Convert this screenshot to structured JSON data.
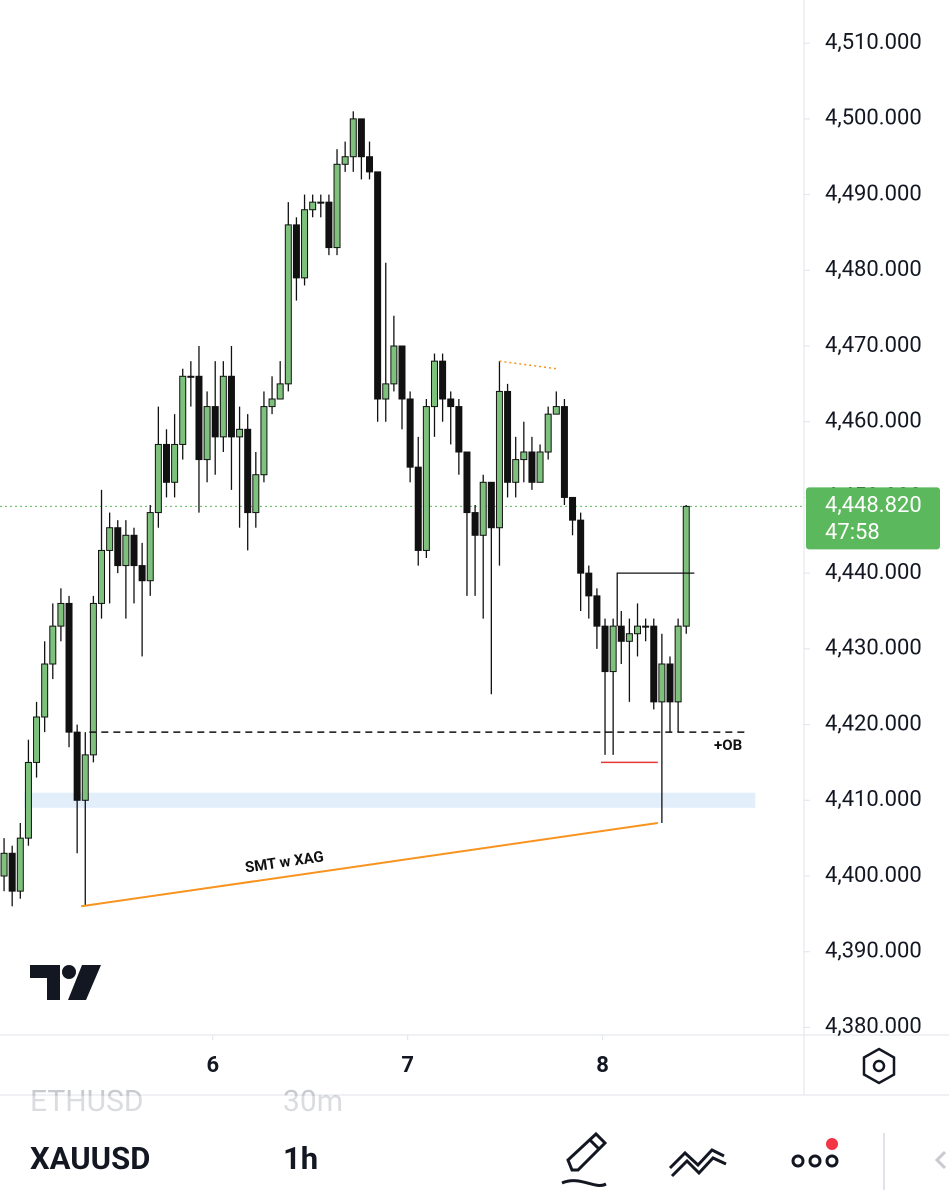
{
  "chart_data": {
    "type": "candlestick",
    "symbol": "XAUUSD",
    "open": [
      4400,
      4403,
      4398,
      4405,
      4415,
      4421,
      4428,
      4433,
      4436,
      4419,
      4410,
      4416,
      4436,
      4443,
      4446,
      4441,
      4445,
      4441,
      4439,
      4448,
      4457,
      4452,
      4457,
      4466,
      4466,
      4455,
      4462,
      4458,
      4466,
      4458,
      4459,
      4448,
      4453,
      4462,
      4463,
      4465,
      4486,
      4479,
      4488,
      4489,
      4489,
      4483,
      4494,
      4495,
      4500,
      4495,
      4493,
      4463,
      4465,
      4470,
      4463,
      4454,
      4443,
      4462,
      4468,
      4463,
      4462,
      4456,
      4448,
      4445,
      4452,
      4446,
      4464,
      4452,
      4455,
      4456,
      4452,
      4456,
      4461,
      4462,
      4450,
      4447,
      4440,
      4437,
      4433,
      4427,
      4433,
      4431,
      4432,
      4433,
      4433,
      4423,
      4428,
      4423,
      4433
    ],
    "high": [
      4405,
      4404,
      4407,
      4418,
      4423,
      4431,
      4436,
      4438,
      4437,
      4420,
      4419,
      4437,
      4451,
      4448,
      4447,
      4447,
      4446,
      4444,
      4449,
      4462,
      4459,
      4461,
      4467,
      4468,
      4470,
      4464,
      4468,
      4468,
      4470,
      4462,
      4461,
      4456,
      4464,
      4466,
      4468,
      4489,
      4487,
      4490,
      4490,
      4490,
      4490,
      4496,
      4497,
      4501,
      4500,
      4497,
      4493,
      4481,
      4474,
      4470,
      4464,
      4458,
      4463,
      4469,
      4469,
      4464,
      4463,
      4456,
      4449,
      4453,
      4452,
      4468,
      4465,
      4458,
      4460,
      4458,
      4457,
      4462,
      4464,
      4463,
      4450,
      4448,
      4441,
      4438,
      4434,
      4434,
      4435,
      4434,
      4436,
      4434,
      4434,
      4432,
      4429,
      4434,
      4449
    ],
    "low": [
      4398,
      4396,
      4397,
      4404,
      4413,
      4419,
      4426,
      4431,
      4417,
      4403,
      4396,
      4415,
      4434,
      4436,
      4440,
      4434,
      4436,
      4429,
      4437,
      4446,
      4450,
      4450,
      4455,
      4462,
      4448,
      4452,
      4453,
      4456,
      4451,
      4446,
      4443,
      4446,
      4452,
      4461,
      4463,
      4464,
      4476,
      4478,
      4487,
      4487,
      4482,
      4482,
      4493,
      4493,
      4492,
      4492,
      4460,
      4460,
      4464,
      4459,
      4452,
      4441,
      4442,
      4458,
      4460,
      4457,
      4453,
      4437,
      4437,
      4434,
      4424,
      4441,
      4450,
      4450,
      4452,
      4451,
      4453,
      4455,
      4461,
      4449,
      4445,
      4435,
      4434,
      4430,
      4416,
      4416,
      4428,
      4423,
      4429,
      4431,
      4422,
      4407,
      4419,
      4419,
      4432
    ],
    "close": [
      4403,
      4398,
      4405,
      4415,
      4421,
      4428,
      4433,
      4436,
      4419,
      4410,
      4416,
      4436,
      4443,
      4446,
      4441,
      4445,
      4441,
      4439,
      4448,
      4457,
      4452,
      4457,
      4466,
      4466,
      4455,
      4462,
      4458,
      4466,
      4458,
      4459,
      4448,
      4453,
      4462,
      4463,
      4465,
      4486,
      4479,
      4488,
      4489,
      4489,
      4483,
      4494,
      4495,
      4500,
      4495,
      4493,
      4463,
      4465,
      4470,
      4463,
      4454,
      4443,
      4462,
      4468,
      4463,
      4462,
      4456,
      4448,
      4445,
      4452,
      4446,
      4464,
      4452,
      4455,
      4456,
      4452,
      4456,
      4461,
      4462,
      4450,
      4447,
      4440,
      4437,
      4433,
      4427,
      4433,
      4431,
      4432,
      4433,
      4433,
      4423,
      4428,
      4423,
      4433,
      4448.82
    ],
    "up_color": "#7dc17d",
    "down_color": "#111111",
    "xlim": [
      0,
      99
    ],
    "xticks": [
      {
        "value": 26.2,
        "label": "6"
      },
      {
        "value": 50.2,
        "label": "7"
      },
      {
        "value": 74.2,
        "label": "8"
      }
    ],
    "ylim": [
      4379,
      4515.7
    ],
    "yticks": [
      {
        "value": 4380,
        "label": "4,380.000"
      },
      {
        "value": 4390,
        "label": "4,390.000"
      },
      {
        "value": 4400,
        "label": "4,400.000"
      },
      {
        "value": 4410,
        "label": "4,410.000"
      },
      {
        "value": 4420,
        "label": "4,420.000"
      },
      {
        "value": 4430,
        "label": "4,430.000"
      },
      {
        "value": 4440,
        "label": "4,440.000"
      },
      {
        "value": 4450,
        "label": "4,450.000"
      },
      {
        "value": 4460,
        "label": "4,460.000"
      },
      {
        "value": 4470,
        "label": "4,470.000"
      },
      {
        "value": 4480,
        "label": "4,480.000"
      },
      {
        "value": 4490,
        "label": "4,490.000"
      },
      {
        "value": 4500,
        "label": "4,500.000"
      },
      {
        "value": 4510,
        "label": "4,510.000"
      }
    ],
    "last_price": {
      "value": 4448.82,
      "label": "4,448.820",
      "countdown": "47:58",
      "color": "#5cb85c"
    },
    "annotations": {
      "ob_line": {
        "value": 4419,
        "x": [
          11,
          92
        ],
        "label": "+OB"
      },
      "zone": {
        "y": [
          4409,
          4411
        ],
        "x": [
          3,
          93
        ]
      },
      "smt_line": {
        "x": [
          10,
          81
        ],
        "y": [
          4396,
          4407
        ],
        "label": "SMT w XAG",
        "color": "#f7931e"
      },
      "red_line": {
        "value": 4415,
        "x": [
          74,
          81
        ],
        "color": "#e53935"
      },
      "box_line": {
        "value": 4440,
        "x": [
          76,
          85.5
        ],
        "low": 4433
      },
      "dotted_line": {
        "x": [
          61.5,
          68.5
        ],
        "y": [
          4468,
          4467
        ]
      }
    }
  },
  "toolbar": {
    "prev_symbol": "ETHUSD",
    "prev_interval": "30m",
    "symbol": "XAUUSD",
    "interval": "1h"
  }
}
